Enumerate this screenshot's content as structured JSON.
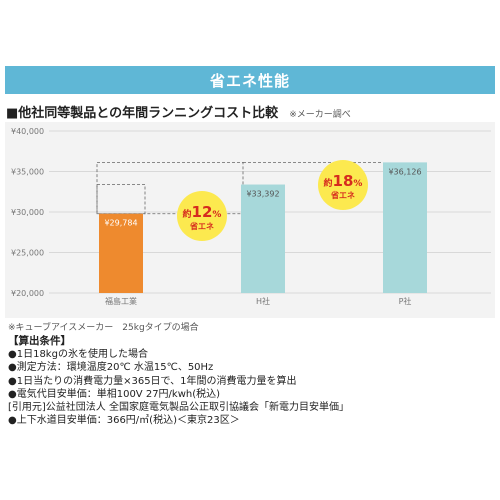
{
  "banner": {
    "title": "省エネ性能"
  },
  "heading": {
    "title": "■他社同等製品との年間ランニングコスト比較",
    "note": "※メーカー調べ"
  },
  "chart_data": {
    "type": "bar",
    "categories": [
      "福島工業",
      "H社",
      "P社"
    ],
    "values": [
      29784,
      33392,
      36126
    ],
    "value_labels": [
      "¥29,784",
      "¥33,392",
      "¥36,126"
    ],
    "ylim": [
      20000,
      40000
    ],
    "yticks": [
      20000,
      25000,
      30000,
      35000,
      40000
    ],
    "ytick_labels": [
      "¥20,000",
      "¥25,000",
      "¥30,000",
      "¥35,000",
      "¥40,000"
    ],
    "grid": true,
    "bar_colors": [
      "#ee8a2e",
      "#a7d8da",
      "#a7d8da"
    ],
    "savings_badges": [
      {
        "target": "H社",
        "prefix": "約",
        "percent": "12",
        "unit": "%",
        "suffix": "省エネ"
      },
      {
        "target": "P社",
        "prefix": "約",
        "percent": "18",
        "unit": "%",
        "suffix": "省エネ"
      }
    ],
    "badge_color": "#fce94f",
    "badge_text_color": "#d62b1e"
  },
  "footnote": "※キューブアイスメーカー　25kgタイプの場合",
  "conditions": {
    "title": "【算出条件】",
    "lines": [
      "●1日18kgの氷を使用した場合",
      "●測定方法：環境温度20℃ 水温15℃、50Hz",
      "●1日当たりの消費電力量×365日で、1年間の消費電力量を算出",
      "●電気代目安単価：単相100V 27円/kwh(税込)",
      "[引用元]公益社団法人 全国家庭電気製品公正取引協議会「新電力目安単価」",
      "●上下水道目安単価：366円/㎥(税込)＜東京23区＞"
    ]
  }
}
